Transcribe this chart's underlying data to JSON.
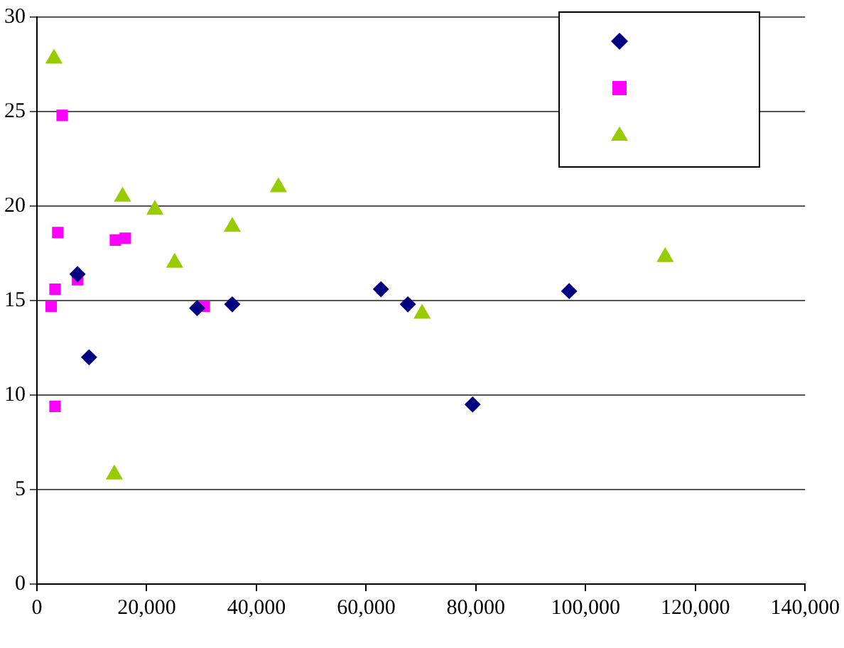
{
  "chart_data": {
    "type": "scatter",
    "xlim": [
      0,
      140000
    ],
    "ylim": [
      0,
      30
    ],
    "xticks": [
      0,
      {
        "value": 20000,
        "label": "20,000"
      },
      {
        "value": 40000,
        "label": "40,000"
      },
      {
        "value": 60000,
        "label": "60,000"
      },
      {
        "value": 80000,
        "label": "80,000"
      },
      {
        "value": 100000,
        "label": "100,000"
      },
      {
        "value": 120000,
        "label": "120,000"
      },
      {
        "value": 140000,
        "label": "140,000"
      }
    ],
    "yticks": [
      0,
      5,
      10,
      15,
      20,
      25,
      30
    ],
    "grid": "y",
    "series": [
      {
        "color": "#000080",
        "marker": "diamond",
        "x": [
          7400,
          9500,
          29200,
          35600,
          62700,
          67600,
          79400,
          97000
        ],
        "values": [
          16.4,
          12.0,
          14.6,
          14.8,
          15.6,
          14.8,
          9.5,
          15.5
        ]
      },
      {
        "color": "#ff00ff",
        "marker": "square",
        "x": [
          4600,
          3800,
          3300,
          2600,
          7400,
          14300,
          16100,
          30500,
          3300
        ],
        "values": [
          24.8,
          18.6,
          15.6,
          14.7,
          16.1,
          18.2,
          18.3,
          14.7,
          9.4
        ]
      },
      {
        "color": "#99cc00",
        "marker": "triangle",
        "x": [
          3100,
          15600,
          21500,
          25100,
          35600,
          44000,
          14100,
          70200,
          114500
        ],
        "values": [
          27.8,
          20.5,
          19.8,
          17.0,
          18.9,
          21.0,
          5.8,
          14.3,
          17.3
        ]
      }
    ]
  }
}
